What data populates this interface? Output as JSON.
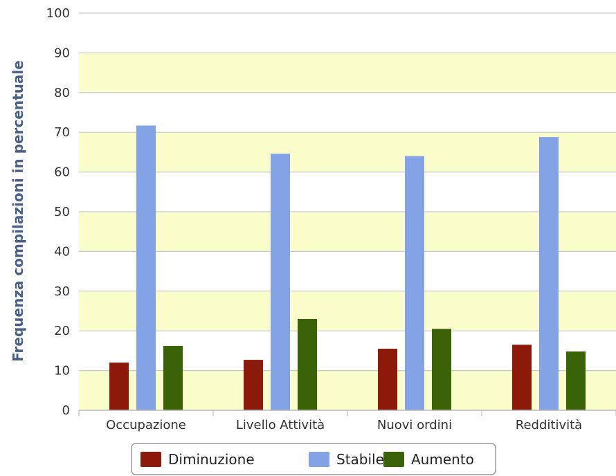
{
  "chart_data": {
    "type": "bar",
    "title": "",
    "xlabel": "",
    "ylabel": "Frequenza compilazioni in percentuale",
    "ylim": [
      0,
      100
    ],
    "yticks": [
      "0",
      "10",
      "20",
      "30",
      "40",
      "50",
      "60",
      "70",
      "80",
      "90",
      "100"
    ],
    "categories": [
      "Occupazione",
      "Livello Attività",
      "Nuovi ordini",
      "Redditività"
    ],
    "series": [
      {
        "name": "Diminuzione",
        "color": "#8b1a0a",
        "values": [
          12,
          12.7,
          15.5,
          16.5
        ]
      },
      {
        "name": "Stabile",
        "color": "#84a3e6",
        "values": [
          71.7,
          64.6,
          64,
          68.8
        ]
      },
      {
        "name": "Aumento",
        "color": "#3a6206",
        "values": [
          16.2,
          23,
          20.5,
          14.8
        ]
      }
    ],
    "grid": true,
    "band_color": "#fbfdcb",
    "legend": {
      "position": "bottom",
      "items": [
        "Diminuzione",
        "Stabile",
        "Aumento"
      ]
    }
  }
}
